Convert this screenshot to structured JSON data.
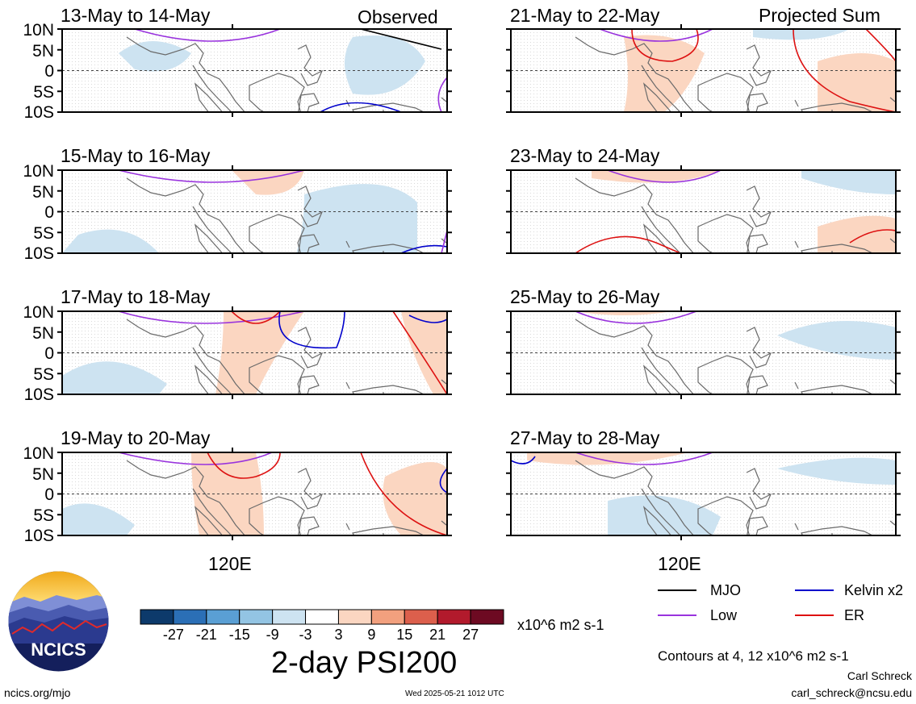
{
  "panels": [
    {
      "title": "13-May to 14-May",
      "label": "Observed"
    },
    {
      "title": "15-May to 16-May",
      "label": ""
    },
    {
      "title": "17-May to 18-May",
      "label": ""
    },
    {
      "title": "19-May to 20-May",
      "label": ""
    },
    {
      "title": "21-May to 22-May",
      "label": "Projected Sum"
    },
    {
      "title": "23-May to 24-May",
      "label": ""
    },
    {
      "title": "25-May to 26-May",
      "label": ""
    },
    {
      "title": "27-May to 28-May",
      "label": ""
    }
  ],
  "lat_labels": [
    "10N",
    "5N",
    "0",
    "5S",
    "10S"
  ],
  "lon_label": "120E",
  "legend": {
    "items": [
      {
        "name": "MJO",
        "color": "#000000"
      },
      {
        "name": "Kelvin x2",
        "color": "#0000cc"
      },
      {
        "name": "Low",
        "color": "#9933dd"
      },
      {
        "name": "ER",
        "color": "#dd1111"
      }
    ],
    "contours_note": "Contours at 4, 12 x10^6 m2 s-1"
  },
  "colorbar": {
    "ticks": [
      "-27",
      "-21",
      "-15",
      "-9",
      "-3",
      "3",
      "9",
      "15",
      "21",
      "27"
    ],
    "colors": [
      "#0d3a6b",
      "#2b6fb6",
      "#5a9fd4",
      "#93c4e3",
      "#cde3f1",
      "#ffffff",
      "#fbd6c1",
      "#f2a07e",
      "#dc5f4c",
      "#b21a2c",
      "#6d0a22"
    ],
    "units": "x10^6 m2 s-1"
  },
  "main_title": "2-day PSI200",
  "logo_text": "NCICS",
  "footer": {
    "url": "ncics.org/mjo",
    "timestamp": "Wed 2025-05-21 1012 UTC",
    "author": "Carl Schreck",
    "email": "carl_schreck@ncsu.edu"
  },
  "colors": {
    "positive_fill": "#fbd6c1",
    "negative_fill": "#cde3f1"
  }
}
